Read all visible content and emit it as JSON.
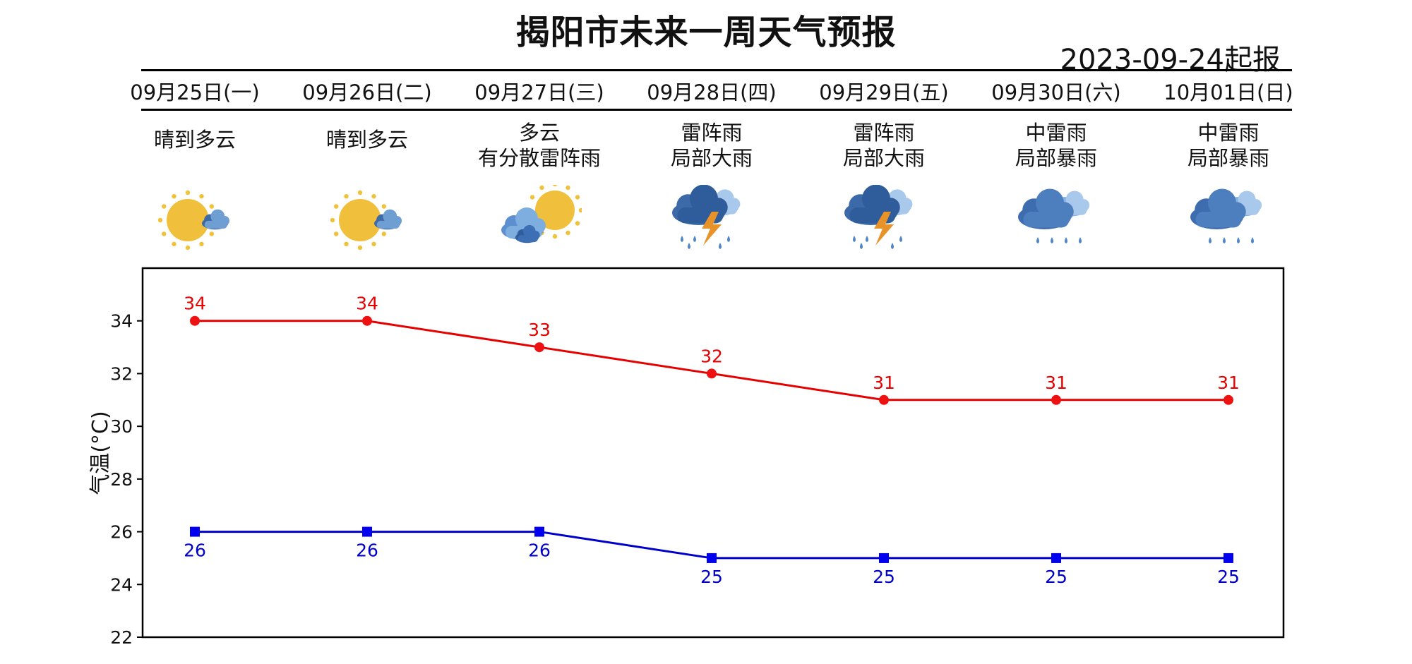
{
  "title": "揭阳市未来一周天气预报",
  "issue_date": "2023-09-24起报",
  "days": [
    {
      "label": "09月25日(一)",
      "desc": [
        "晴到多云"
      ],
      "icon": "sun-cloud-icon"
    },
    {
      "label": "09月26日(二)",
      "desc": [
        "晴到多云"
      ],
      "icon": "sun-cloud-icon"
    },
    {
      "label": "09月27日(三)",
      "desc": [
        "多云",
        "有分散雷阵雨"
      ],
      "icon": "cloudy-sun-icon"
    },
    {
      "label": "09月28日(四)",
      "desc": [
        "雷阵雨",
        "局部大雨"
      ],
      "icon": "thunderstorm-icon"
    },
    {
      "label": "09月29日(五)",
      "desc": [
        "雷阵雨",
        "局部大雨"
      ],
      "icon": "thunderstorm-icon"
    },
    {
      "label": "09月30日(六)",
      "desc": [
        "中雷雨",
        "局部暴雨"
      ],
      "icon": "rain-icon"
    },
    {
      "label": "10月01日(日)",
      "desc": [
        "中雷雨",
        "局部暴雨"
      ],
      "icon": "rain-icon"
    }
  ],
  "colors": {
    "high": "#e60000",
    "low": "#0000cc",
    "high_marker": "#ee1111",
    "low_marker": "#0000ee"
  },
  "chart_data": {
    "type": "line",
    "ylabel": "气温(°C)",
    "ylim": [
      22,
      36
    ],
    "yticks": [
      22,
      24,
      26,
      28,
      30,
      32,
      34
    ],
    "grid": false,
    "legend": "none",
    "series": [
      {
        "key": "high",
        "marker": "circle",
        "values": [
          34,
          34,
          33,
          32,
          31,
          31,
          31
        ]
      },
      {
        "key": "low",
        "marker": "square",
        "values": [
          26,
          26,
          26,
          25,
          25,
          25,
          25
        ]
      }
    ]
  }
}
